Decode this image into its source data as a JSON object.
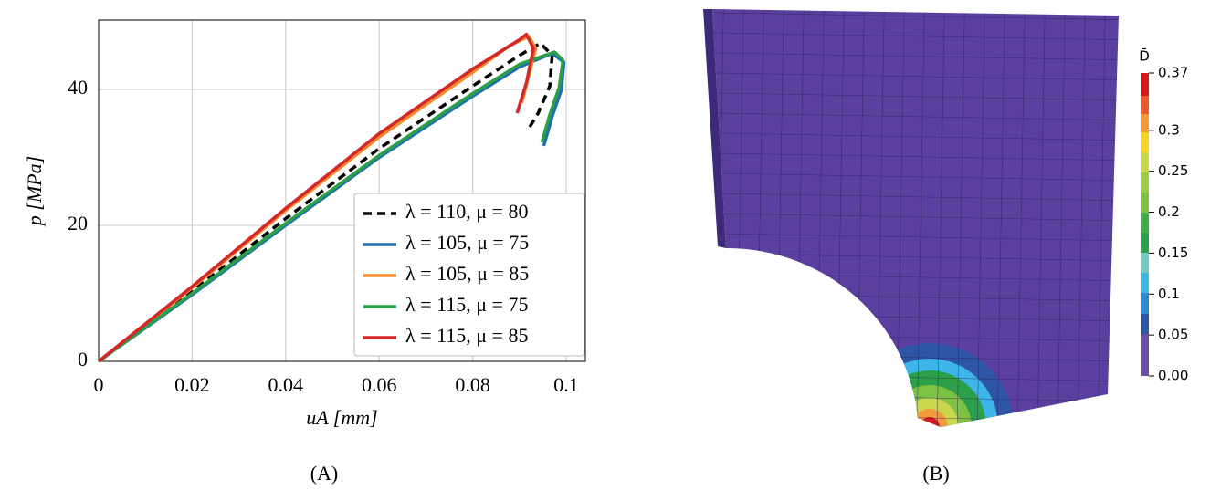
{
  "chart_data": {
    "type": "line",
    "x_label": "uA [mm]",
    "y_label": "p [MPa]",
    "xlim": [
      0,
      0.1041
    ],
    "ylim": [
      0,
      50.2
    ],
    "xticks": [
      0,
      0.02,
      0.04,
      0.06,
      0.08,
      0.1
    ],
    "yticks": [
      0,
      20,
      40
    ],
    "grid": true,
    "legend": "lower right",
    "series": [
      {
        "name": "λ = 110, μ = 80",
        "color": "#000000",
        "dash": true,
        "x": [
          0,
          0.02,
          0.04,
          0.06,
          0.08,
          0.09,
          0.0945,
          0.097,
          0.0965,
          0.094,
          0.0916
        ],
        "values": [
          0,
          10.3,
          21,
          31.3,
          40.5,
          45,
          46.8,
          45,
          40.5,
          36.5,
          33.8
        ]
      },
      {
        "name": "λ = 105, μ = 75",
        "color": "#1f6fb0",
        "dash": false,
        "x": [
          0,
          0.02,
          0.04,
          0.06,
          0.08,
          0.09,
          0.097,
          0.0995,
          0.099,
          0.097,
          0.0952
        ],
        "values": [
          0,
          9.8,
          20,
          30,
          39,
          43.3,
          45.3,
          44,
          40,
          36,
          31.7
        ]
      },
      {
        "name": "λ = 105, μ = 85",
        "color": "#f28a2e",
        "dash": false,
        "x": [
          0,
          0.02,
          0.04,
          0.06,
          0.08,
          0.088,
          0.092,
          0.0935,
          0.092,
          0.0905
        ],
        "values": [
          0,
          10.8,
          22.2,
          33,
          42.5,
          46.5,
          47.8,
          46,
          42,
          38
        ]
      },
      {
        "name": "λ = 115, μ = 75",
        "color": "#2ca048",
        "dash": false,
        "x": [
          0,
          0.02,
          0.04,
          0.06,
          0.08,
          0.09,
          0.0975,
          0.0993,
          0.0985,
          0.0965,
          0.0948
        ],
        "values": [
          0,
          10,
          20.3,
          30.3,
          39.4,
          43.7,
          45.5,
          44.3,
          40.3,
          36.3,
          32.2
        ]
      },
      {
        "name": "λ = 115, μ = 85",
        "color": "#d62728",
        "dash": false,
        "x": [
          0,
          0.02,
          0.04,
          0.06,
          0.08,
          0.09,
          0.0915,
          0.093,
          0.0915,
          0.0895
        ],
        "values": [
          0,
          11,
          22.5,
          33.5,
          43,
          47.3,
          48.1,
          46,
          41,
          36.5
        ]
      }
    ]
  },
  "contour": {
    "colorbar_title": "D̄",
    "ticks": [
      0.37,
      0.3,
      0.25,
      0.2,
      0.15,
      0.1,
      0.05,
      {
        "value": 0,
        "label": "0.00"
      }
    ],
    "lim": [
      0,
      0.37
    ]
  },
  "captions": [
    "(A)",
    "(B)"
  ]
}
